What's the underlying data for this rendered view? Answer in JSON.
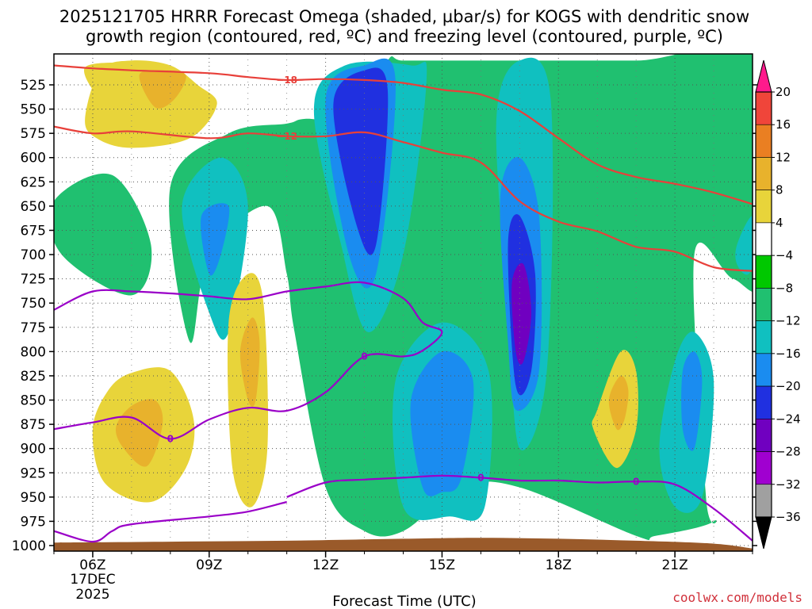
{
  "chart_data": {
    "type": "heatmap",
    "title_line1": "2025121705 HRRR Forecast Omega (shaded, µbar/s) for KOGS with dendritic snow",
    "title_line2": "growth region (contoured, red, ºC) and freezing level (contoured, purple, ºC)",
    "xlabel": "Forecast Time (UTC)",
    "credit": "coolwx.com/models",
    "x_ticks": [
      "06Z",
      "09Z",
      "12Z",
      "15Z",
      "18Z",
      "21Z"
    ],
    "x_tick_hours": [
      6,
      9,
      12,
      15,
      18,
      21
    ],
    "x_date": [
      "17DEC",
      "2025"
    ],
    "xlim_hours": [
      5,
      23
    ],
    "y_ticks": [
      "525",
      "550",
      "575",
      "600",
      "625",
      "650",
      "675",
      "700",
      "725",
      "750",
      "775",
      "800",
      "825",
      "850",
      "875",
      "900",
      "925",
      "950",
      "975",
      "1000"
    ],
    "y_tick_values": [
      525,
      550,
      575,
      600,
      625,
      650,
      675,
      700,
      725,
      750,
      775,
      800,
      825,
      850,
      875,
      900,
      925,
      950,
      975,
      1000
    ],
    "y_note": "pressure (hPa), inverted axis",
    "colorbar": {
      "labels": [
        "20",
        "16",
        "12",
        "8",
        "4",
        "−4",
        "−8",
        "−12",
        "−16",
        "−20",
        "−24",
        "−28",
        "−32",
        "−36"
      ],
      "colors": [
        "#ff1a8c",
        "#f0453a",
        "#ea7f22",
        "#e8b22c",
        "#e8d43a",
        "#ffffff",
        "#00c800",
        "#20c070",
        "#10c0c0",
        "#1a8cf0",
        "#2030e0",
        "#7000c0",
        "#a000d0",
        "#a0a0a0",
        "#000000"
      ]
    },
    "dgz_contours": [
      {
        "label": "−18",
        "points": [
          [
            5,
            505
          ],
          [
            6,
            508
          ],
          [
            7,
            510
          ],
          [
            9,
            513
          ],
          [
            10,
            517
          ],
          [
            11,
            520
          ],
          [
            12,
            519
          ],
          [
            13,
            520
          ],
          [
            14,
            523
          ],
          [
            15,
            530
          ],
          [
            16,
            535
          ],
          [
            17,
            552
          ],
          [
            18,
            580
          ],
          [
            19,
            607
          ],
          [
            20,
            620
          ],
          [
            21,
            627
          ],
          [
            22,
            636
          ],
          [
            23,
            648
          ]
        ]
      },
      {
        "label": "−12",
        "points": [
          [
            5,
            568
          ],
          [
            6,
            575
          ],
          [
            7,
            573
          ],
          [
            9,
            580
          ],
          [
            10,
            575
          ],
          [
            11,
            578
          ],
          [
            12,
            578
          ],
          [
            13,
            574
          ],
          [
            14,
            584
          ],
          [
            15,
            595
          ],
          [
            16,
            605
          ],
          [
            17,
            645
          ],
          [
            18,
            666
          ],
          [
            19,
            676
          ],
          [
            20,
            692
          ],
          [
            21,
            697
          ],
          [
            22,
            713
          ],
          [
            23,
            717
          ]
        ]
      }
    ],
    "freezing_contours": [
      {
        "label": "0",
        "points": [
          [
            5,
            757
          ],
          [
            6,
            738
          ],
          [
            7,
            738
          ],
          [
            8,
            740
          ],
          [
            9,
            743
          ],
          [
            10,
            746
          ],
          [
            11,
            738
          ],
          [
            12,
            733
          ],
          [
            13,
            729
          ],
          [
            14,
            745
          ],
          [
            14.5,
            770
          ],
          [
            15,
            780
          ],
          [
            14.5,
            799
          ],
          [
            14,
            805
          ],
          [
            13,
            805
          ],
          [
            12,
            842
          ],
          [
            11,
            861
          ],
          [
            10,
            858
          ],
          [
            9,
            870
          ],
          [
            8,
            890
          ],
          [
            7,
            868
          ],
          [
            6,
            873
          ],
          [
            5,
            880
          ]
        ]
      },
      {
        "label": "0",
        "points": [
          [
            11,
            950
          ],
          [
            12,
            935
          ],
          [
            13,
            932
          ],
          [
            14,
            930
          ],
          [
            15,
            928
          ],
          [
            16,
            930
          ],
          [
            17,
            933
          ],
          [
            18,
            933
          ],
          [
            19,
            935
          ],
          [
            20,
            934
          ],
          [
            21,
            937
          ],
          [
            22,
            962
          ],
          [
            23,
            995
          ]
        ]
      },
      {
        "label": "",
        "points": [
          [
            5,
            985
          ],
          [
            6,
            996
          ],
          [
            6.5,
            985
          ],
          [
            7,
            978
          ],
          [
            9,
            970
          ],
          [
            10,
            965
          ],
          [
            11,
            955
          ]
        ]
      }
    ],
    "omega_regions": [
      {
        "cat": 7,
        "x": [
          5,
          6.5,
          7.5,
          7,
          5.2
        ],
        "y": [
          645,
          618,
          690,
          742,
          700
        ]
      },
      {
        "cat": 7,
        "x": [
          8,
          9.5,
          11,
          11.5,
          13,
          13.6,
          14,
          15.5,
          16.5,
          16.8,
          20,
          23.3,
          23.3,
          22.5,
          21.5,
          21.8,
          22,
          20.5,
          20,
          17,
          15.5,
          14,
          13,
          12,
          11.2,
          11,
          10.5,
          9,
          8.5
        ],
        "y": [
          630,
          575,
          565,
          560,
          560,
          500,
          500,
          500,
          500,
          500,
          500,
          500,
          720,
          725,
          700,
          950,
          975,
          990,
          990,
          940,
          940,
          985,
          985,
          940,
          780,
          720,
          650,
          700,
          790
        ]
      },
      {
        "cat": 8,
        "x": [
          8.3,
          9.3,
          10,
          9.5,
          9
        ],
        "y": [
          650,
          600,
          650,
          780,
          760
        ]
      },
      {
        "cat": 9,
        "x": [
          8.8,
          9.5,
          9.3,
          9
        ],
        "y": [
          660,
          650,
          700,
          720
        ]
      },
      {
        "cat": 8,
        "x": [
          11.7,
          12.5,
          14.2,
          14.6,
          14,
          13.1,
          12.4
        ],
        "y": [
          550,
          505,
          505,
          520,
          700,
          780,
          690
        ]
      },
      {
        "cat": 9,
        "x": [
          12,
          13,
          13.8,
          13.3,
          12.6
        ],
        "y": [
          540,
          505,
          520,
          720,
          700
        ]
      },
      {
        "cat": 10,
        "x": [
          12.2,
          13,
          13.6,
          13.3,
          12.8
        ],
        "y": [
          545,
          510,
          530,
          690,
          670
        ]
      },
      {
        "cat": 8,
        "x": [
          13.8,
          15,
          16.2,
          16.1,
          15.2,
          14
        ],
        "y": [
          830,
          770,
          820,
          960,
          970,
          960
        ]
      },
      {
        "cat": 9,
        "x": [
          14.2,
          15,
          15.8,
          15.5,
          15,
          14.5
        ],
        "y": [
          850,
          800,
          830,
          930,
          945,
          940
        ]
      },
      {
        "cat": 8,
        "x": [
          16.4,
          17,
          17.8,
          17.7,
          17,
          16.7
        ],
        "y": [
          560,
          500,
          540,
          820,
          900,
          760
        ]
      },
      {
        "cat": 9,
        "x": [
          16.5,
          17,
          17.5,
          17.5,
          16.9,
          16.7
        ],
        "y": [
          640,
          600,
          660,
          820,
          860,
          790
        ]
      },
      {
        "cat": 10,
        "x": [
          16.7,
          17,
          17.4,
          17.3,
          16.9
        ],
        "y": [
          690,
          660,
          720,
          820,
          835
        ]
      },
      {
        "cat": 11,
        "x": [
          16.8,
          17.1,
          17.3,
          17.1,
          16.9
        ],
        "y": [
          730,
          710,
          760,
          810,
          800
        ]
      },
      {
        "cat": 8,
        "x": [
          21,
          21.5,
          22,
          21.7,
          21,
          20.6
        ],
        "y": [
          810,
          780,
          830,
          950,
          960,
          900
        ]
      },
      {
        "cat": 9,
        "x": [
          21.2,
          21.5,
          21.7,
          21.5,
          21.2
        ],
        "y": [
          820,
          800,
          830,
          900,
          880
        ]
      },
      {
        "cat": 8,
        "x": [
          22.6,
          23,
          23.2,
          22.9,
          22.6
        ],
        "y": [
          690,
          660,
          690,
          720,
          710
        ]
      },
      {
        "cat": 4,
        "x": [
          5.8,
          7.5,
          8,
          6.6
        ],
        "y": [
          507,
          505,
          525,
          550
        ]
      },
      {
        "cat": 4,
        "x": [
          5.8,
          6.2,
          7,
          8,
          8.7,
          9.2,
          8.5,
          7,
          6.1
        ],
        "y": [
          560,
          510,
          500,
          505,
          525,
          545,
          580,
          590,
          580
        ]
      },
      {
        "cat": 3,
        "x": [
          7.2,
          7.8,
          8.4,
          8.1,
          7.6
        ],
        "y": [
          515,
          510,
          515,
          540,
          548
        ]
      },
      {
        "cat": 4,
        "x": [
          6,
          6.4,
          7,
          8,
          8.6,
          8.4,
          7.5,
          6.3
        ],
        "y": [
          880,
          840,
          822,
          820,
          870,
          920,
          955,
          935
        ]
      },
      {
        "cat": 3,
        "x": [
          6.6,
          7,
          7.6,
          7.8,
          7.4,
          6.8
        ],
        "y": [
          878,
          856,
          850,
          875,
          918,
          900
        ]
      },
      {
        "cat": 4,
        "x": [
          9.5,
          10,
          10.4,
          10.5,
          10.1,
          9.6
        ],
        "y": [
          770,
          720,
          750,
          900,
          960,
          920
        ]
      },
      {
        "cat": 3,
        "x": [
          9.8,
          10.1,
          10.3,
          10.2,
          10
        ],
        "y": [
          800,
          765,
          790,
          850,
          850
        ]
      },
      {
        "cat": 4,
        "x": [
          19,
          19.6,
          20,
          20,
          19.5,
          18.9
        ],
        "y": [
          860,
          800,
          820,
          880,
          920,
          880
        ]
      },
      {
        "cat": 3,
        "x": [
          19.3,
          19.6,
          19.8,
          19.7,
          19.5
        ],
        "y": [
          850,
          825,
          840,
          870,
          880
        ]
      }
    ],
    "ground": {
      "label": "",
      "points": [
        [
          5,
          997
        ],
        [
          8,
          996
        ],
        [
          11,
          995
        ],
        [
          14,
          993
        ],
        [
          16,
          992
        ],
        [
          18,
          993
        ],
        [
          20,
          995
        ],
        [
          22,
          998
        ],
        [
          23,
          1003
        ]
      ]
    }
  }
}
